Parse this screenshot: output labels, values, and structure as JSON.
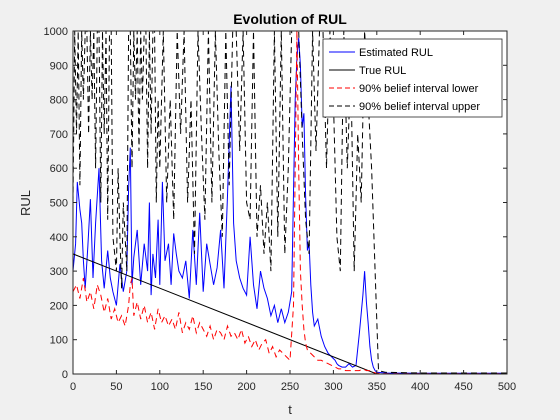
{
  "chart_data": {
    "type": "line",
    "title": "Evolution of RUL",
    "xlabel": "t",
    "ylabel": "RUL",
    "xlim": [
      0,
      500
    ],
    "ylim": [
      0,
      1000
    ],
    "xticks": [
      0,
      50,
      100,
      150,
      200,
      250,
      300,
      350,
      400,
      450,
      500
    ],
    "yticks": [
      0,
      100,
      200,
      300,
      400,
      500,
      600,
      700,
      800,
      900,
      1000
    ],
    "grid": false,
    "legend_position": "top-right",
    "series": [
      {
        "name": "Estimated RUL",
        "color": "#0000ff",
        "style": "solid",
        "x": [
          0,
          3,
          5,
          8,
          10,
          12,
          14,
          17,
          20,
          23,
          26,
          30,
          33,
          36,
          40,
          43,
          46,
          50,
          54,
          58,
          62,
          64,
          66,
          68,
          70,
          74,
          78,
          82,
          86,
          88,
          90,
          92,
          95,
          98,
          100,
          103,
          106,
          110,
          113,
          116,
          119,
          122,
          126,
          130,
          134,
          138,
          142,
          146,
          150,
          154,
          158,
          162,
          166,
          170,
          174,
          178,
          182,
          185,
          188,
          192,
          196,
          200,
          204,
          208,
          212,
          216,
          220,
          224,
          228,
          232,
          236,
          240,
          244,
          248,
          252,
          256,
          258,
          260,
          262,
          264,
          266,
          268,
          270,
          272,
          274,
          276,
          278,
          282,
          286,
          290,
          294,
          298,
          300,
          302,
          304,
          306,
          310,
          314,
          318,
          322,
          326,
          330,
          334,
          336,
          338,
          340,
          342,
          344,
          346,
          348,
          350,
          360,
          400,
          450,
          500
        ],
        "y": [
          300,
          380,
          560,
          480,
          440,
          330,
          250,
          370,
          510,
          280,
          440,
          600,
          330,
          250,
          360,
          280,
          240,
          200,
          320,
          240,
          300,
          540,
          660,
          260,
          340,
          420,
          260,
          380,
          300,
          500,
          230,
          350,
          280,
          450,
          260,
          560,
          330,
          380,
          260,
          410,
          350,
          300,
          280,
          330,
          220,
          420,
          260,
          470,
          240,
          380,
          320,
          260,
          310,
          420,
          250,
          520,
          840,
          440,
          330,
          280,
          250,
          230,
          400,
          260,
          190,
          300,
          250,
          220,
          170,
          200,
          150,
          190,
          150,
          180,
          240,
          800,
          920,
          980,
          900,
          720,
          760,
          520,
          360,
          380,
          260,
          180,
          140,
          160,
          110,
          80,
          60,
          50,
          45,
          40,
          30,
          25,
          20,
          20,
          30,
          20,
          25,
          120,
          230,
          300,
          210,
          150,
          80,
          40,
          20,
          10,
          5,
          3,
          2,
          2,
          2
        ]
      },
      {
        "name": "True RUL",
        "color": "#000000",
        "style": "solid",
        "x": [
          0,
          350,
          360,
          400,
          450,
          500
        ],
        "y": [
          350,
          0,
          0,
          0,
          0,
          0
        ]
      },
      {
        "name": "90% belief interval lower",
        "color": "#ff0000",
        "style": "dashed",
        "x": [
          0,
          4,
          8,
          12,
          16,
          20,
          24,
          28,
          32,
          36,
          40,
          44,
          48,
          52,
          56,
          60,
          64,
          66,
          68,
          70,
          74,
          78,
          82,
          86,
          90,
          94,
          98,
          102,
          106,
          110,
          114,
          118,
          122,
          126,
          130,
          134,
          138,
          142,
          146,
          150,
          154,
          158,
          162,
          166,
          170,
          174,
          178,
          182,
          186,
          190,
          194,
          198,
          202,
          206,
          210,
          214,
          218,
          222,
          226,
          230,
          234,
          238,
          242,
          246,
          250,
          254,
          256,
          258,
          260,
          262,
          264,
          266,
          268,
          270,
          274,
          278,
          282,
          286,
          290,
          294,
          298,
          302,
          306,
          310,
          314,
          318,
          322,
          326,
          330,
          334,
          338,
          342,
          346,
          350,
          360,
          400,
          450,
          500
        ],
        "y": [
          240,
          260,
          220,
          280,
          210,
          240,
          190,
          260,
          230,
          180,
          220,
          160,
          190,
          150,
          170,
          140,
          200,
          260,
          280,
          170,
          210,
          160,
          200,
          150,
          180,
          130,
          190,
          150,
          170,
          140,
          160,
          130,
          180,
          120,
          150,
          130,
          170,
          120,
          150,
          130,
          110,
          140,
          100,
          130,
          120,
          100,
          140,
          110,
          120,
          100,
          130,
          90,
          110,
          80,
          100,
          70,
          90,
          100,
          60,
          80,
          50,
          70,
          60,
          50,
          40,
          200,
          600,
          1000,
          600,
          300,
          200,
          130,
          90,
          70,
          60,
          50,
          40,
          40,
          35,
          30,
          25,
          20,
          15,
          15,
          10,
          10,
          10,
          10,
          10,
          15,
          10,
          10,
          5,
          2,
          1,
          1,
          1,
          1
        ]
      },
      {
        "name": "90% belief interval upper",
        "color": "#000000",
        "style": "dashed",
        "x": [
          0,
          2,
          4,
          6,
          8,
          10,
          12,
          14,
          16,
          18,
          20,
          22,
          24,
          26,
          28,
          30,
          32,
          34,
          36,
          38,
          40,
          42,
          44,
          46,
          48,
          50,
          52,
          54,
          56,
          58,
          60,
          62,
          64,
          66,
          68,
          70,
          72,
          74,
          76,
          78,
          80,
          82,
          84,
          86,
          88,
          90,
          92,
          94,
          96,
          98,
          100,
          104,
          108,
          112,
          116,
          120,
          124,
          128,
          132,
          136,
          140,
          144,
          148,
          152,
          156,
          160,
          164,
          168,
          172,
          176,
          180,
          184,
          188,
          192,
          196,
          200,
          204,
          208,
          212,
          216,
          220,
          224,
          228,
          232,
          236,
          240,
          244,
          248,
          252,
          256,
          260,
          264,
          268,
          272,
          276,
          280,
          284,
          288,
          292,
          296,
          300,
          304,
          308,
          312,
          316,
          320,
          324,
          328,
          332,
          336,
          340,
          344,
          348,
          352,
          360,
          400,
          450,
          500
        ],
        "y": [
          500,
          1000,
          700,
          1000,
          550,
          1000,
          800,
          1000,
          1000,
          700,
          1000,
          800,
          1000,
          600,
          1000,
          1000,
          500,
          1000,
          700,
          1000,
          450,
          1000,
          1000,
          400,
          350,
          300,
          600,
          400,
          250,
          500,
          400,
          300,
          1000,
          1000,
          600,
          1000,
          800,
          1000,
          650,
          1000,
          800,
          1000,
          1000,
          600,
          1000,
          700,
          1000,
          1000,
          500,
          800,
          600,
          1000,
          500,
          800,
          450,
          1000,
          700,
          1000,
          500,
          800,
          350,
          1000,
          700,
          450,
          1000,
          500,
          1000,
          650,
          400,
          1000,
          550,
          1000,
          1000,
          650,
          1000,
          500,
          450,
          1000,
          400,
          550,
          350,
          500,
          300,
          1000,
          400,
          1000,
          350,
          600,
          1000,
          1000,
          1000,
          700,
          450,
          350,
          1000,
          650,
          1000,
          1000,
          600,
          1000,
          800,
          400,
          300,
          1000,
          600,
          900,
          300,
          700,
          500,
          1000,
          800,
          600,
          300,
          10,
          5,
          3,
          3,
          3
        ]
      }
    ]
  }
}
